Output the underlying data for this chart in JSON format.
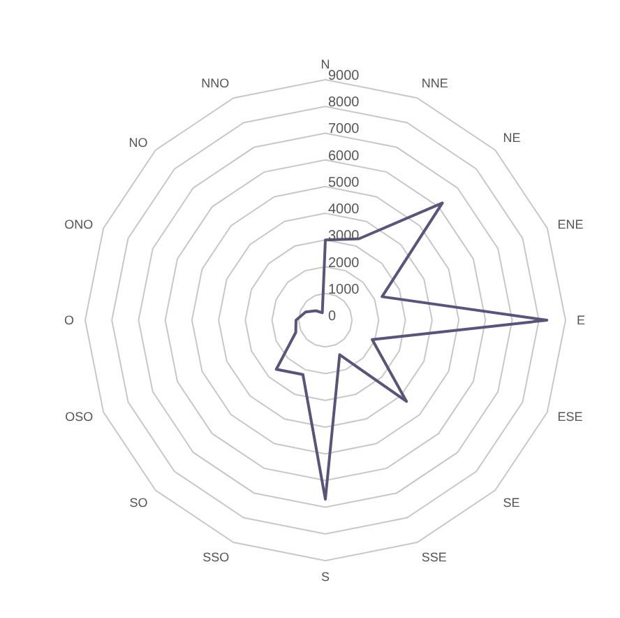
{
  "chart_data": {
    "type": "radar",
    "categories": [
      "N",
      "NNE",
      "NE",
      "ENE",
      "E",
      "ESE",
      "SE",
      "SSE",
      "S",
      "SSO",
      "SO",
      "OSO",
      "O",
      "ONO",
      "NO",
      "NNO"
    ],
    "series": [
      {
        "color": "#5a5478",
        "values": [
          3000,
          3300,
          6200,
          2300,
          8300,
          1900,
          4300,
          1400,
          6700,
          2200,
          2600,
          1200,
          1100,
          800,
          500,
          300
        ]
      }
    ],
    "ylim": [
      0,
      9000
    ],
    "yticks": [
      0,
      1000,
      2000,
      3000,
      4000,
      5000,
      6000,
      7000,
      8000,
      9000
    ],
    "grid": true,
    "marker": "none"
  }
}
